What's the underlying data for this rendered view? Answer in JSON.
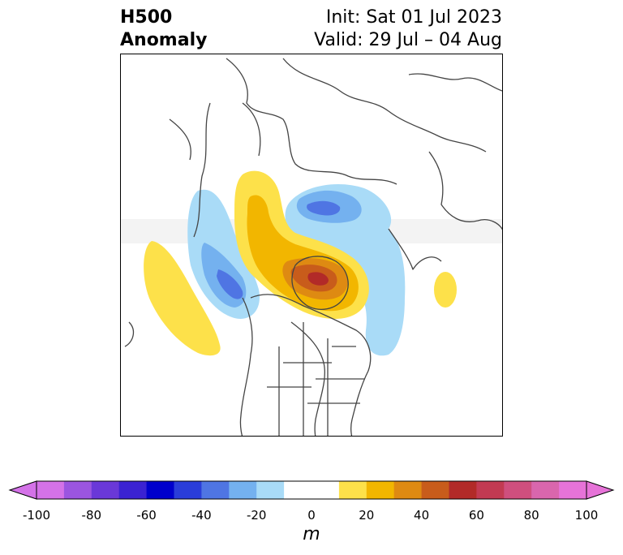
{
  "title": {
    "left_line1": "H500",
    "left_line2": "Anomaly",
    "right_line1": "Init: Sat 01 Jul 2023",
    "right_line2": "Valid: 29 Jul – 04 Aug"
  },
  "colors": {
    "light_blue": "#a9dbf7",
    "mid_blue": "#74b1ef",
    "blue": "#4f75e3",
    "light_yellow": "#fde14a",
    "yellow": "#f2b600",
    "orange": "#de8a12",
    "dark_orange": "#c85c1b",
    "red": "#b22a28",
    "coastline": "#444444"
  },
  "colorbar": {
    "unit": "m",
    "tick_labels": [
      "-100",
      "-80",
      "-60",
      "-40",
      "-20",
      "0",
      "20",
      "40",
      "60",
      "80",
      "100"
    ],
    "bins": [
      "#d472e8",
      "#9b55e0",
      "#6a38d8",
      "#3b22d2",
      "#0000cc",
      "#2a3dd9",
      "#4f75e3",
      "#74b1ef",
      "#a9dbf7",
      "#ffffff",
      "#ffffff",
      "#fde14a",
      "#f2b600",
      "#de8a12",
      "#c85c1b",
      "#b22a28",
      "#c23a52",
      "#cf4f7e",
      "#d966ad",
      "#e673d8"
    ],
    "extend_low_color": "#d472e8",
    "extend_high_color": "#e673d8"
  }
}
